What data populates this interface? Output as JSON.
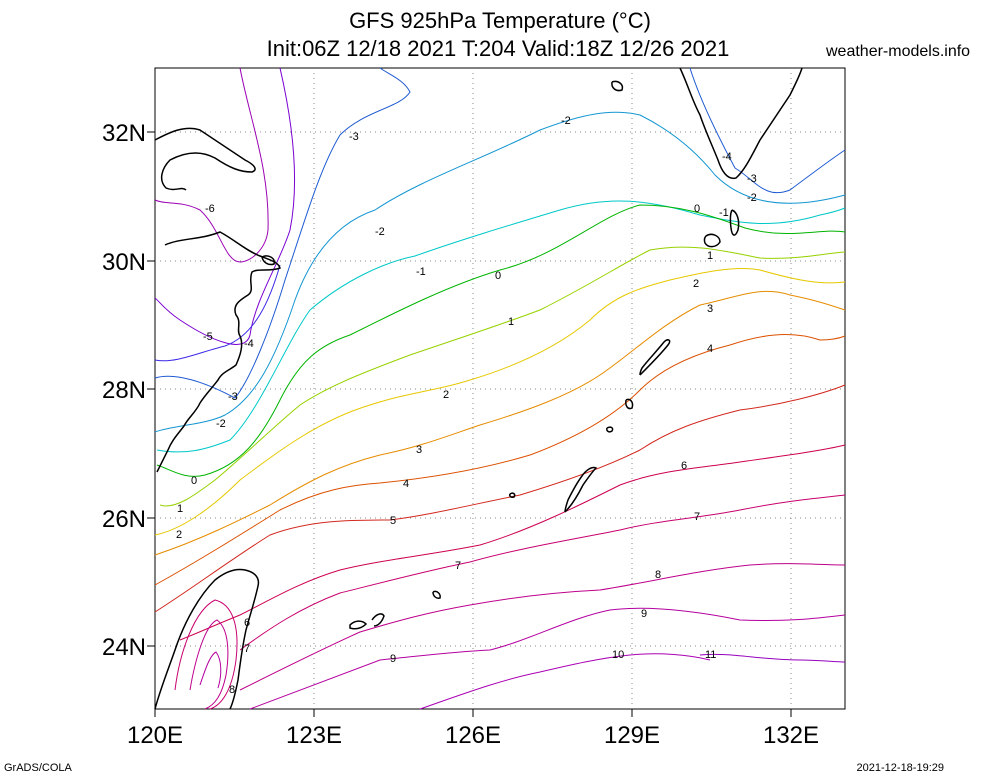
{
  "header": {
    "title_line1": "GFS 925hPa Temperature (°C)",
    "title_line2": "Init:06Z 12/18 2021 T:204 Valid:18Z 12/26 2021",
    "site": "weather-models.info"
  },
  "footer": {
    "left": "GrADS/COLA",
    "right": "2021-12-18-19:29"
  },
  "map": {
    "lat_labels": [
      "32N",
      "30N",
      "28N",
      "26N",
      "24N"
    ],
    "lon_labels": [
      "120E",
      "123E",
      "126E",
      "129E",
      "132E"
    ],
    "lon_range": [
      120,
      133
    ],
    "lat_range": [
      23,
      33
    ],
    "grid": "dotted",
    "contour_labels": [
      "-6",
      "-5",
      "-4",
      "-3",
      "-2",
      "-1",
      "0",
      "1",
      "2",
      "3",
      "4",
      "5",
      "6",
      "7",
      "8",
      "9",
      "10",
      "11"
    ]
  },
  "colors": {
    "coast": "#000000",
    "m6": "#9b00b4",
    "m5": "#7a00d2",
    "m4": "#3c28e6",
    "m3": "#1e5ad2",
    "m2": "#1496d2",
    "m1": "#00c8c8",
    "z0": "#00b400",
    "p1": "#96d200",
    "p2": "#e6c800",
    "p3": "#e68c00",
    "p4": "#dc5000",
    "p5": "#d2281e",
    "p6": "#cd0050",
    "p7": "#c8006e",
    "p8": "#be008c",
    "p9": "#b400a0",
    "p10": "#aa00b4",
    "p11": "#9600be"
  }
}
